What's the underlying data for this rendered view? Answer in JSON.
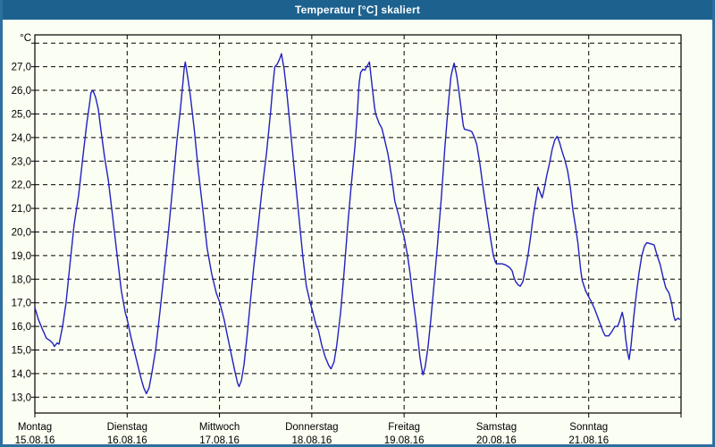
{
  "window": {
    "title": "Temperatur [°C] skaliert"
  },
  "colors": {
    "titlebar": "#1d628f",
    "window_background": "#fbfef2",
    "frame_border": "#2d6f9f",
    "plot_border": "#000000",
    "gridline": "#000000",
    "series_line": "#2121c2"
  },
  "chart_data": {
    "type": "line",
    "title": "Temperatur [°C] skaliert",
    "grid": "dashed",
    "legend": "none",
    "y_axis": {
      "unit_label": "°C",
      "gridline_values": [
        13,
        14,
        15,
        16,
        17,
        18,
        19,
        20,
        21,
        22,
        23,
        24,
        25,
        26,
        27,
        28
      ],
      "tick_labels": [
        {
          "value": 27,
          "label": "27,0"
        },
        {
          "value": 26,
          "label": "26,0"
        },
        {
          "value": 25,
          "label": "25,0"
        },
        {
          "value": 24,
          "label": "24,0"
        },
        {
          "value": 23,
          "label": "23,0"
        },
        {
          "value": 22,
          "label": "22,0"
        },
        {
          "value": 21,
          "label": "21,0"
        },
        {
          "value": 20,
          "label": "20,0"
        },
        {
          "value": 19,
          "label": "19,0"
        },
        {
          "value": 18,
          "label": "18,0"
        },
        {
          "value": 17,
          "label": "17,0"
        },
        {
          "value": 16,
          "label": "16,0"
        },
        {
          "value": 15,
          "label": "15,0"
        },
        {
          "value": 14,
          "label": "14,0"
        },
        {
          "value": 13,
          "label": "13,0"
        }
      ]
    },
    "ylim": [
      12.33,
      28.35
    ],
    "x_axis": {
      "hours_span": 168,
      "day_ticks": [
        {
          "hour": 0,
          "weekday": "Montag",
          "date": "15.08.16"
        },
        {
          "hour": 24,
          "weekday": "Dienstag",
          "date": "16.08.16"
        },
        {
          "hour": 48,
          "weekday": "Mittwoch",
          "date": "17.08.16"
        },
        {
          "hour": 72,
          "weekday": "Donnerstag",
          "date": "18.08.16"
        },
        {
          "hour": 96,
          "weekday": "Freitag",
          "date": "19.08.16"
        },
        {
          "hour": 120,
          "weekday": "Samstag",
          "date": "20.08.16"
        },
        {
          "hour": 144,
          "weekday": "Sonntag",
          "date": "21.08.16"
        }
      ]
    },
    "series": [
      {
        "name": "Temperatur",
        "color": "#2121c2",
        "points": [
          [
            0,
            16.8
          ],
          [
            0.9,
            16.3
          ],
          [
            1.9,
            15.9
          ],
          [
            3,
            15.5
          ],
          [
            3.9,
            15.4
          ],
          [
            4.6,
            15.3
          ],
          [
            5.1,
            15.15
          ],
          [
            5.8,
            15.3
          ],
          [
            6.3,
            15.25
          ],
          [
            7.2,
            16.0
          ],
          [
            8.1,
            17.0
          ],
          [
            9.1,
            18.6
          ],
          [
            10.2,
            20.3
          ],
          [
            11.4,
            21.6
          ],
          [
            12.5,
            23.2
          ],
          [
            13.5,
            24.6
          ],
          [
            14.2,
            25.4
          ],
          [
            14.6,
            25.9
          ],
          [
            15.1,
            26.0
          ],
          [
            15.8,
            25.7
          ],
          [
            16.5,
            25.2
          ],
          [
            17.2,
            24.3
          ],
          [
            18.1,
            23.2
          ],
          [
            19.1,
            22.2
          ],
          [
            20.2,
            20.7
          ],
          [
            21.4,
            19.0
          ],
          [
            22.5,
            17.5
          ],
          [
            23.5,
            16.6
          ],
          [
            24,
            16.3
          ],
          [
            24.9,
            15.6
          ],
          [
            25.8,
            15.0
          ],
          [
            26.7,
            14.4
          ],
          [
            27.6,
            13.8
          ],
          [
            28.3,
            13.4
          ],
          [
            29,
            13.15
          ],
          [
            29.7,
            13.4
          ],
          [
            30.4,
            14.0
          ],
          [
            31.4,
            15.0
          ],
          [
            32.5,
            16.6
          ],
          [
            33.7,
            18.4
          ],
          [
            34.9,
            20.3
          ],
          [
            36,
            22.2
          ],
          [
            36.9,
            23.8
          ],
          [
            37.9,
            25.3
          ],
          [
            38.6,
            26.5
          ],
          [
            38.8,
            26.9
          ],
          [
            39.1,
            27.2
          ],
          [
            39.7,
            26.6
          ],
          [
            40.4,
            25.8
          ],
          [
            41.4,
            24.4
          ],
          [
            42.5,
            22.6
          ],
          [
            43.7,
            20.9
          ],
          [
            44.8,
            19.3
          ],
          [
            46,
            18.2
          ],
          [
            47.2,
            17.4
          ],
          [
            48,
            17.05
          ],
          [
            49.2,
            16.3
          ],
          [
            50.2,
            15.5
          ],
          [
            51.1,
            14.8
          ],
          [
            52,
            14.1
          ],
          [
            52.7,
            13.6
          ],
          [
            53.1,
            13.45
          ],
          [
            53.7,
            13.7
          ],
          [
            54.4,
            14.4
          ],
          [
            55.3,
            15.8
          ],
          [
            56,
            17.0
          ],
          [
            56.9,
            18.5
          ],
          [
            57.9,
            20.0
          ],
          [
            59,
            21.7
          ],
          [
            60.2,
            23.3
          ],
          [
            61.3,
            25.1
          ],
          [
            62,
            26.4
          ],
          [
            62.4,
            27.0
          ],
          [
            63,
            27.1
          ],
          [
            63.7,
            27.35
          ],
          [
            64.1,
            27.55
          ],
          [
            64.8,
            26.9
          ],
          [
            65.5,
            25.9
          ],
          [
            66.4,
            24.4
          ],
          [
            67.6,
            22.4
          ],
          [
            68.8,
            20.4
          ],
          [
            69.7,
            18.9
          ],
          [
            70.6,
            17.7
          ],
          [
            71.6,
            17.0
          ],
          [
            72.2,
            16.65
          ],
          [
            73.2,
            16.0
          ],
          [
            73.7,
            15.85
          ],
          [
            74.6,
            15.2
          ],
          [
            75.5,
            14.7
          ],
          [
            76.4,
            14.35
          ],
          [
            77,
            14.2
          ],
          [
            77.8,
            14.5
          ],
          [
            78.5,
            15.2
          ],
          [
            79.5,
            16.6
          ],
          [
            80.4,
            18.3
          ],
          [
            81.3,
            20.2
          ],
          [
            82.2,
            21.9
          ],
          [
            83.2,
            23.6
          ],
          [
            83.9,
            25.2
          ],
          [
            84.3,
            26.3
          ],
          [
            84.7,
            26.75
          ],
          [
            85.3,
            26.9
          ],
          [
            85.8,
            26.85
          ],
          [
            86.3,
            27.0
          ],
          [
            87,
            27.2
          ],
          [
            87.4,
            26.6
          ],
          [
            87.8,
            26.0
          ],
          [
            88.3,
            25.3
          ],
          [
            88.6,
            25.0
          ],
          [
            89.5,
            24.6
          ],
          [
            90.2,
            24.4
          ],
          [
            90.8,
            24.0
          ],
          [
            91.8,
            23.3
          ],
          [
            92.7,
            22.4
          ],
          [
            93.6,
            21.3
          ],
          [
            94.6,
            20.7
          ],
          [
            95.3,
            20.2
          ],
          [
            96,
            19.8
          ],
          [
            96.9,
            19.0
          ],
          [
            97.6,
            18.2
          ],
          [
            98.3,
            17.2
          ],
          [
            99,
            16.3
          ],
          [
            99.7,
            15.3
          ],
          [
            100.1,
            14.7
          ],
          [
            100.6,
            14.2
          ],
          [
            100.9,
            13.95
          ],
          [
            101.5,
            14.3
          ],
          [
            102.2,
            15.1
          ],
          [
            102.9,
            16.2
          ],
          [
            103.8,
            17.8
          ],
          [
            104.7,
            19.5
          ],
          [
            105.7,
            21.5
          ],
          [
            106.6,
            23.6
          ],
          [
            107.5,
            25.4
          ],
          [
            108.2,
            26.6
          ],
          [
            108.6,
            26.9
          ],
          [
            109,
            27.15
          ],
          [
            109.7,
            26.6
          ],
          [
            110.3,
            25.9
          ],
          [
            111,
            25.0
          ],
          [
            111.4,
            24.5
          ],
          [
            111.7,
            24.35
          ],
          [
            112.9,
            24.3
          ],
          [
            113.6,
            24.25
          ],
          [
            114.3,
            24.0
          ],
          [
            114.9,
            23.7
          ],
          [
            115.7,
            22.9
          ],
          [
            116.6,
            21.8
          ],
          [
            117.6,
            20.7
          ],
          [
            118.5,
            19.7
          ],
          [
            119.2,
            19.0
          ],
          [
            119.7,
            18.75
          ],
          [
            120,
            18.65
          ],
          [
            121.5,
            18.65
          ],
          [
            122.4,
            18.6
          ],
          [
            123.4,
            18.5
          ],
          [
            124.1,
            18.35
          ],
          [
            124.5,
            18.1
          ],
          [
            125,
            17.9
          ],
          [
            125.7,
            17.75
          ],
          [
            126.2,
            17.7
          ],
          [
            126.9,
            17.9
          ],
          [
            127.5,
            18.4
          ],
          [
            128.2,
            19.0
          ],
          [
            128.9,
            19.8
          ],
          [
            129.6,
            20.7
          ],
          [
            130.3,
            21.4
          ],
          [
            130.8,
            21.9
          ],
          [
            131.3,
            21.7
          ],
          [
            131.9,
            21.45
          ],
          [
            132.4,
            21.8
          ],
          [
            133.1,
            22.4
          ],
          [
            133.8,
            22.9
          ],
          [
            134.5,
            23.5
          ],
          [
            135.2,
            23.9
          ],
          [
            135.8,
            24.05
          ],
          [
            136.4,
            23.8
          ],
          [
            137.1,
            23.4
          ],
          [
            137.8,
            23.05
          ],
          [
            138.5,
            22.6
          ],
          [
            139.2,
            21.9
          ],
          [
            139.9,
            20.9
          ],
          [
            140.5,
            20.3
          ],
          [
            141.2,
            19.5
          ],
          [
            141.9,
            18.4
          ],
          [
            142.3,
            17.95
          ],
          [
            143.2,
            17.5
          ],
          [
            144,
            17.25
          ],
          [
            144.8,
            17.0
          ],
          [
            145.5,
            16.75
          ],
          [
            146.2,
            16.45
          ],
          [
            147.1,
            16.05
          ],
          [
            147.8,
            15.75
          ],
          [
            148.3,
            15.6
          ],
          [
            149.2,
            15.6
          ],
          [
            149.9,
            15.75
          ],
          [
            150.8,
            16.0
          ],
          [
            151.5,
            16.0
          ],
          [
            152,
            16.2
          ],
          [
            152.7,
            16.6
          ],
          [
            153.1,
            16.3
          ],
          [
            153.6,
            15.5
          ],
          [
            154.1,
            14.9
          ],
          [
            154.5,
            14.6
          ],
          [
            155,
            15.2
          ],
          [
            155.7,
            16.4
          ],
          [
            156.4,
            17.4
          ],
          [
            157.1,
            18.3
          ],
          [
            157.8,
            19.0
          ],
          [
            158.5,
            19.4
          ],
          [
            159.1,
            19.55
          ],
          [
            160.1,
            19.5
          ],
          [
            161,
            19.45
          ],
          [
            161.7,
            19.05
          ],
          [
            162.6,
            18.6
          ],
          [
            163.3,
            18.1
          ],
          [
            164,
            17.65
          ],
          [
            164.9,
            17.4
          ],
          [
            165.6,
            16.95
          ],
          [
            166.1,
            16.45
          ],
          [
            166.5,
            16.25
          ],
          [
            167.2,
            16.35
          ],
          [
            167.6,
            16.3
          ]
        ]
      }
    ]
  }
}
